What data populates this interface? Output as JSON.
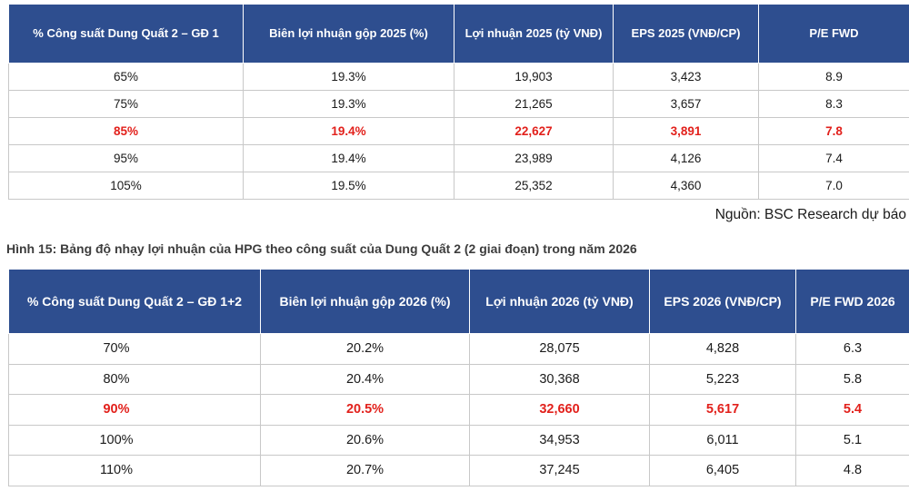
{
  "table_2025": {
    "headers": [
      "% Công suất Dung Quất 2 – GĐ 1",
      "Biên lợi nhuận gộp 2025  (%)",
      "Lợi nhuận 2025 (tỷ VNĐ)",
      "EPS 2025 (VNĐ/CP)",
      "P/E FWD"
    ],
    "rows": [
      [
        "65%",
        "19.3%",
        "19,903",
        "3,423",
        "8.9"
      ],
      [
        "75%",
        "19.3%",
        "21,265",
        "3,657",
        "8.3"
      ],
      [
        "85%",
        "19.4%",
        "22,627",
        "3,891",
        "7.8"
      ],
      [
        "95%",
        "19.4%",
        "23,989",
        "4,126",
        "7.4"
      ],
      [
        "105%",
        "19.5%",
        "25,352",
        "4,360",
        "7.0"
      ]
    ],
    "highlight_row": 2
  },
  "source_note": "Nguồn: BSC Research dự báo",
  "figure_caption": "Hình 15: Bảng độ nhạy lợi nhuận của HPG theo công suất của Dung Quất 2 (2 giai đoạn) trong năm 2026",
  "table_2026": {
    "headers": [
      "% Công suất Dung Quất 2 – GĐ 1+2",
      "Biên lợi nhuận gộp 2026  (%)",
      "Lợi nhuận 2026 (tỷ VNĐ)",
      "EPS 2026 (VNĐ/CP)",
      "P/E FWD 2026"
    ],
    "rows": [
      [
        "70%",
        "20.2%",
        "28,075",
        "4,828",
        "6.3"
      ],
      [
        "80%",
        "20.4%",
        "30,368",
        "5,223",
        "5.8"
      ],
      [
        "90%",
        "20.5%",
        "32,660",
        "5,617",
        "5.4"
      ],
      [
        "100%",
        "20.6%",
        "34,953",
        "6,011",
        "5.1"
      ],
      [
        "110%",
        "20.7%",
        "37,245",
        "6,405",
        "4.8"
      ]
    ],
    "highlight_row": 2
  },
  "colors": {
    "header_bg": "#2e4e8f",
    "highlight_text": "#e2211c",
    "grid": "#c8c8c8"
  }
}
